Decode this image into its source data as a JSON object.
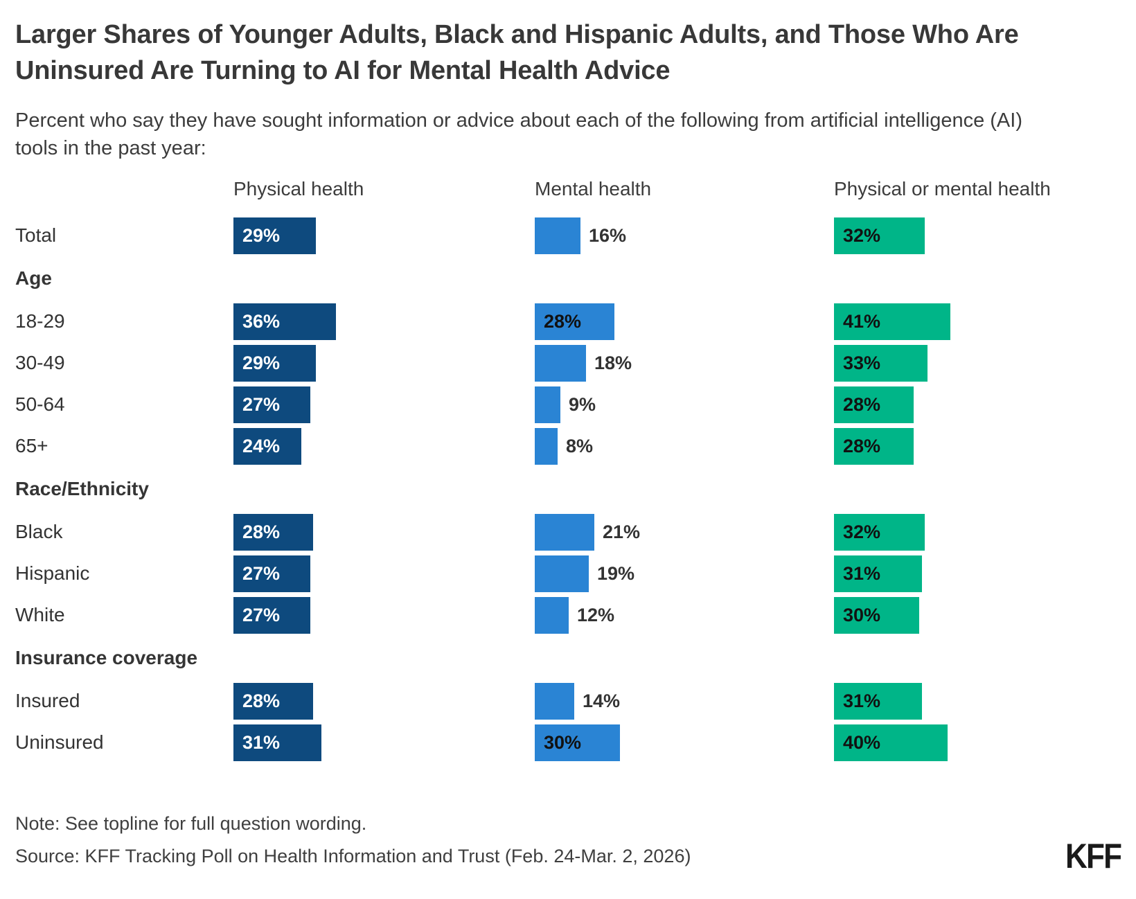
{
  "page": {
    "title": "Larger Shares of Younger Adults, Black and Hispanic Adults, and Those Who Are Uninsured Are Turning to AI for Mental Health Advice",
    "subtitle": "Percent who say they have sought information or advice about each of the following from artificial intelligence (AI) tools in the past year:",
    "note": "Note: See topline for full question wording.",
    "source": "Source: KFF Tracking Poll on Health Information and Trust (Feb. 24-Mar. 2, 2026)",
    "logo_text": "KFF"
  },
  "colors": {
    "physical_health": "#0E4A7E",
    "mental_health": "#2A84D4",
    "physical_or_mental_health": "#00B588",
    "text_dark": "#383838",
    "background": "#FFFFFF"
  },
  "chart_data": {
    "type": "bar",
    "orientation": "horizontal",
    "unit": "%",
    "xlim": [
      0,
      45
    ],
    "grid": false,
    "legend_position": "column-headers-top",
    "series": [
      "Physical health",
      "Mental health",
      "Physical or mental health"
    ],
    "series_colors": [
      "#0E4A7E",
      "#2A84D4",
      "#00B588"
    ],
    "groups": [
      {
        "header": "",
        "rows": [
          {
            "label": "Total",
            "values": [
              29,
              16,
              32
            ]
          }
        ]
      },
      {
        "header": "Age",
        "rows": [
          {
            "label": "18-29",
            "values": [
              36,
              28,
              41
            ]
          },
          {
            "label": "30-49",
            "values": [
              29,
              18,
              33
            ]
          },
          {
            "label": "50-64",
            "values": [
              27,
              9,
              28
            ]
          },
          {
            "label": "65+",
            "values": [
              24,
              8,
              28
            ]
          }
        ]
      },
      {
        "header": "Race/Ethnicity",
        "rows": [
          {
            "label": "Black",
            "values": [
              28,
              21,
              32
            ]
          },
          {
            "label": "Hispanic",
            "values": [
              27,
              19,
              31
            ]
          },
          {
            "label": "White",
            "values": [
              27,
              12,
              30
            ]
          }
        ]
      },
      {
        "header": "Insurance coverage",
        "rows": [
          {
            "label": "Insured",
            "values": [
              28,
              14,
              31
            ]
          },
          {
            "label": "Uninsured",
            "values": [
              31,
              30,
              40
            ]
          }
        ]
      }
    ]
  }
}
